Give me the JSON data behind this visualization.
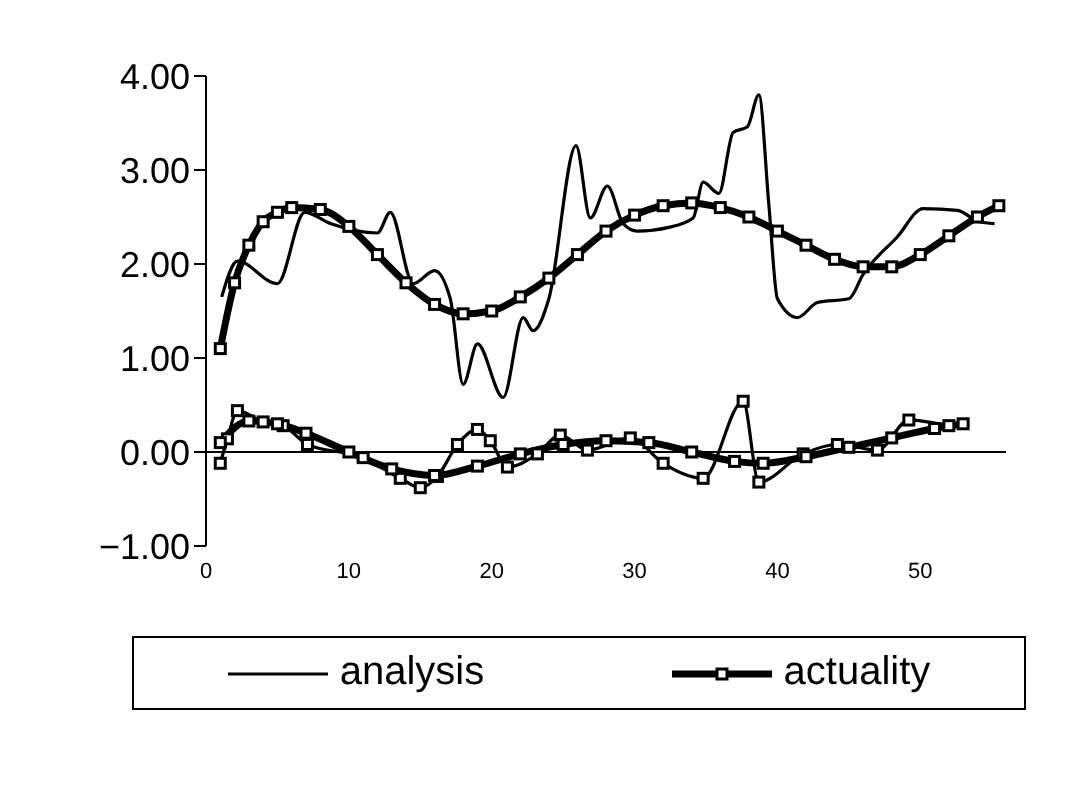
{
  "chart_data": {
    "type": "line",
    "xlim": [
      0,
      56
    ],
    "xticks": [
      0,
      10,
      20,
      30,
      40,
      50
    ],
    "ylim": [
      -1,
      4
    ],
    "yticks": [
      {
        "value": -1,
        "label": "−1.00"
      },
      {
        "value": 0,
        "label": "0.00"
      },
      {
        "value": 1,
        "label": "1.00"
      },
      {
        "value": 2,
        "label": "2.00"
      },
      {
        "value": 3,
        "label": "3.00"
      },
      {
        "value": 4,
        "label": "4.00"
      }
    ],
    "grid": false,
    "legend": "bottom",
    "line_style": "solid",
    "ref_lines": [
      {
        "axis": "y",
        "value": 0,
        "color": "#000000"
      }
    ],
    "series": [
      {
        "name": "analysis",
        "color": "#000000",
        "marker": "none",
        "x": [
          1.1,
          2.2,
          5.0,
          6.9,
          8.7,
          12,
          12.9,
          14.5,
          16,
          17.1,
          18,
          19,
          20.8,
          22.2,
          22.9,
          24,
          25.9,
          26.9,
          28.1,
          29.2,
          30.2,
          32.4,
          34.1,
          34.8,
          35.9,
          36.9,
          37.9,
          38.7,
          39.4,
          40,
          41.4,
          42.8,
          45,
          46,
          48.4,
          50.2,
          52.6,
          54.1,
          55.2
        ],
        "values": [
          1.65,
          2.03,
          1.79,
          2.55,
          2.43,
          2.33,
          2.55,
          1.79,
          1.93,
          1.63,
          0.72,
          1.15,
          0.58,
          1.43,
          1.29,
          1.63,
          3.26,
          2.49,
          2.83,
          2.43,
          2.35,
          2.39,
          2.49,
          2.87,
          2.75,
          3.4,
          3.46,
          3.8,
          2.63,
          1.63,
          1.43,
          1.59,
          1.63,
          1.89,
          2.29,
          2.59,
          2.57,
          2.45,
          2.43
        ]
      },
      {
        "name": "actuality",
        "color": "#000000",
        "marker": "square",
        "x": [
          1,
          2,
          3,
          4,
          5,
          6,
          8,
          10,
          12,
          14,
          16,
          18,
          20,
          22,
          24,
          26,
          28,
          30,
          32,
          34,
          36,
          38,
          40,
          42,
          44,
          46,
          48,
          50,
          52,
          54,
          55.5
        ],
        "values": [
          1.1,
          1.8,
          2.2,
          2.45,
          2.55,
          2.6,
          2.58,
          2.4,
          2.1,
          1.8,
          1.57,
          1.47,
          1.5,
          1.65,
          1.85,
          2.1,
          2.35,
          2.52,
          2.62,
          2.65,
          2.6,
          2.5,
          2.35,
          2.2,
          2.05,
          1.97,
          1.97,
          2.1,
          2.3,
          2.5,
          2.62
        ]
      },
      {
        "color": "#000000",
        "marker": "square",
        "x": [
          1,
          1.5,
          2.2,
          4,
          5.4,
          7.1,
          11,
          13.6,
          15,
          16.2,
          17.6,
          19,
          19.9,
          21.1,
          23.2,
          24.8,
          26.7,
          29.7,
          32,
          34.8,
          37.6,
          38.7,
          41.8,
          44.2,
          47,
          49.2,
          52
        ],
        "values": [
          -0.12,
          0.14,
          0.44,
          0.32,
          0.28,
          0.08,
          -0.06,
          -0.28,
          -0.38,
          -0.26,
          0.08,
          0.24,
          0.12,
          -0.16,
          -0.02,
          0.18,
          0.02,
          0.15,
          -0.12,
          -0.28,
          0.54,
          -0.32,
          -0.02,
          0.08,
          0.02,
          0.34,
          0.28
        ]
      },
      {
        "color": "#000000",
        "marker": "square",
        "x": [
          1,
          3,
          5,
          7,
          10,
          13,
          16,
          19,
          22,
          25,
          28,
          31,
          34,
          37,
          39,
          42,
          45,
          48,
          51,
          53
        ],
        "values": [
          0.1,
          0.33,
          0.3,
          0.2,
          0,
          -0.18,
          -0.25,
          -0.15,
          -0.02,
          0.08,
          0.12,
          0.1,
          0,
          -0.1,
          -0.12,
          -0.05,
          0.05,
          0.15,
          0.25,
          0.3
        ]
      }
    ]
  }
}
